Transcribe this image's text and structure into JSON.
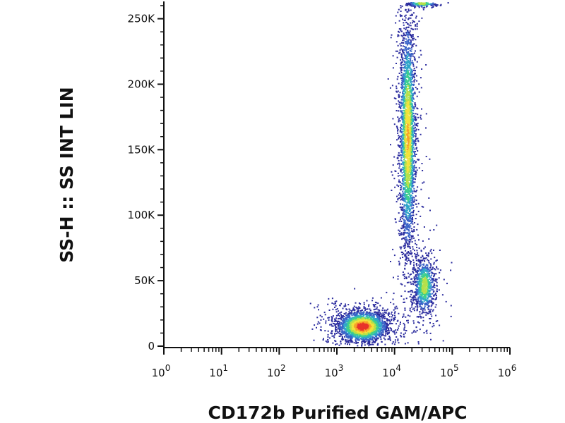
{
  "chart_data": {
    "type": "scatter",
    "style": "density-pseudocolor flow cytometry dot plot",
    "xlabel": "CD172b Purified GAM/APC",
    "ylabel": "SS-H :: SS INT LIN",
    "x_scale": "log",
    "y_scale": "linear",
    "xlim": [
      1,
      1000000
    ],
    "ylim": [
      0,
      262144
    ],
    "x_ticks": [
      {
        "value": 1,
        "base": "10",
        "exp": "0"
      },
      {
        "value": 10,
        "base": "10",
        "exp": "1"
      },
      {
        "value": 100,
        "base": "10",
        "exp": "2"
      },
      {
        "value": 1000,
        "base": "10",
        "exp": "3"
      },
      {
        "value": 10000,
        "base": "10",
        "exp": "4"
      },
      {
        "value": 100000,
        "base": "10",
        "exp": "5"
      },
      {
        "value": 1000000,
        "base": "10",
        "exp": "6"
      }
    ],
    "y_ticks": [
      {
        "value": 0,
        "label": "0"
      },
      {
        "value": 50000,
        "label": "50K"
      },
      {
        "value": 100000,
        "label": "100K"
      },
      {
        "value": 150000,
        "label": "150K"
      },
      {
        "value": 200000,
        "label": "200K"
      },
      {
        "value": 250000,
        "label": "250K"
      }
    ],
    "grid": false,
    "colormap": [
      "#2b2c9e",
      "#3a63c8",
      "#2fa7c9",
      "#3ecf8e",
      "#b6e04a",
      "#f3e23a",
      "#f7a12a",
      "#e8332a"
    ],
    "populations": [
      {
        "x_center": 2800,
        "y_center": 15000,
        "x_spread_decades": 0.2,
        "y_spread": 5500,
        "density": "very high",
        "points": 2600
      },
      {
        "x_center": 17000,
        "y_center": 160000,
        "x_spread_decades": 0.065,
        "y_spread": 42000,
        "density": "high",
        "points": 3000
      },
      {
        "x_center": 33000,
        "y_center": 46000,
        "x_spread_decades": 0.085,
        "y_spread": 10000,
        "density": "medium",
        "points": 900
      },
      {
        "x_center": 30000,
        "y_center": 261500,
        "x_spread_decades": 0.12,
        "y_spread": 1200,
        "density": "medium",
        "points": 230
      }
    ]
  }
}
